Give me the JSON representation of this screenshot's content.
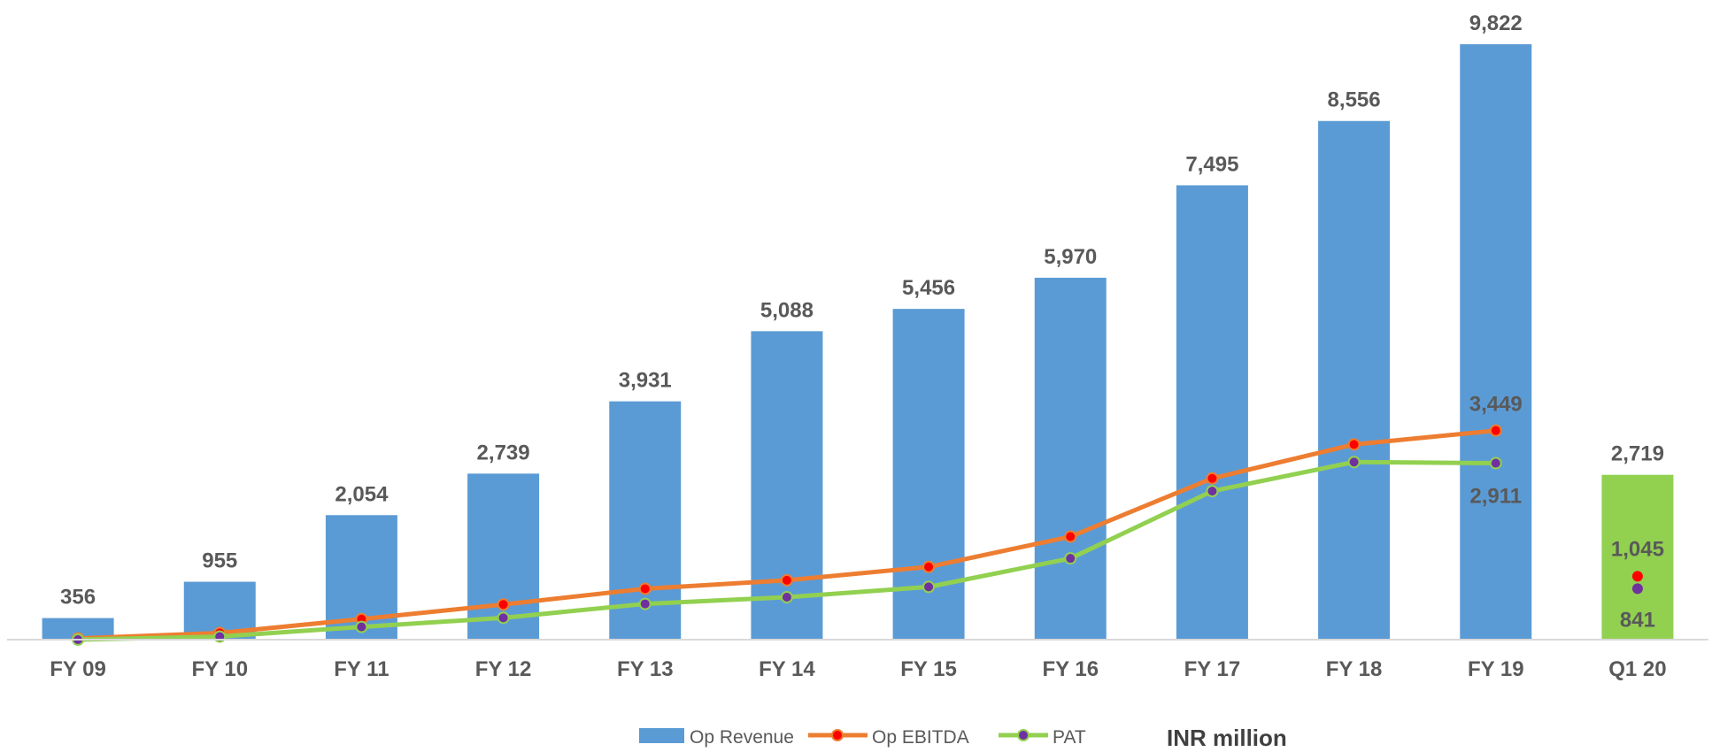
{
  "chart_data": {
    "type": "bar",
    "categories": [
      "FY 09",
      "FY 10",
      "FY 11",
      "FY 12",
      "FY 13",
      "FY 14",
      "FY 15",
      "FY 16",
      "FY 17",
      "FY 18",
      "FY 19",
      "Q1 20"
    ],
    "series": [
      {
        "name": "Op Revenue",
        "type": "bar",
        "color": "#5B9BD5",
        "values": [
          356,
          955,
          2054,
          2739,
          3931,
          5088,
          5456,
          5970,
          7495,
          8556,
          9822,
          2719
        ],
        "labels": [
          "356",
          "955",
          "2,054",
          "2,739",
          "3,931",
          "5,088",
          "5,456",
          "5,970",
          "7,495",
          "8,556",
          "9,822",
          "2,719"
        ],
        "highlight": {
          "index": 11,
          "color": "#92D050"
        }
      },
      {
        "name": "Op EBITDA",
        "type": "line",
        "color": "#ED7D31",
        "marker_color": "#FF0000",
        "values": [
          20,
          110,
          340,
          580,
          840,
          980,
          1200,
          1700,
          2660,
          3220,
          3449,
          1045
        ],
        "labels": {
          "10": "3,449",
          "11": "1,045"
        },
        "line_end_index": 10
      },
      {
        "name": "PAT",
        "type": "line",
        "color": "#92D050",
        "marker_color": "#7030A0",
        "values": [
          0,
          50,
          210,
          360,
          590,
          700,
          870,
          1340,
          2450,
          2930,
          2911,
          841
        ],
        "labels": {
          "10": "2,911",
          "11": "841"
        },
        "line_end_index": 10
      }
    ],
    "ylim": [
      0,
      10300
    ],
    "grid": false,
    "legend": {
      "position": "bottom",
      "items": [
        "Op Revenue",
        "Op EBITDA",
        "PAT"
      ]
    },
    "unit_label": "INR million"
  }
}
